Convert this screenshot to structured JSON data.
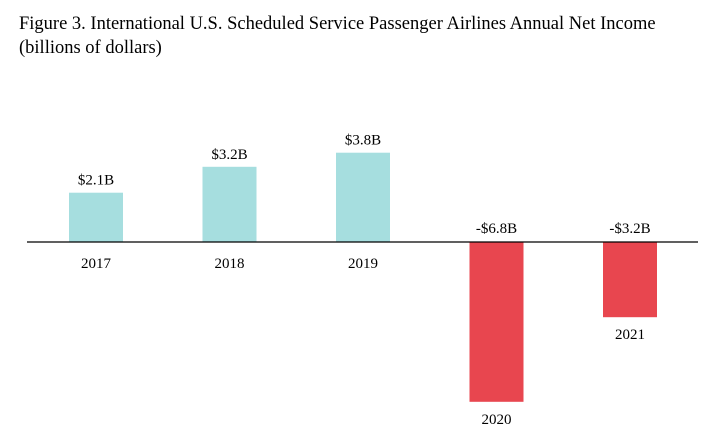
{
  "chart_data": {
    "type": "bar",
    "title": "Figure 3. International U.S. Scheduled Service Passenger Airlines Annual Net Income",
    "subtitle": "(billions of dollars)",
    "categories": [
      "2017",
      "2018",
      "2019",
      "2020",
      "2021"
    ],
    "values": [
      2.1,
      3.2,
      3.8,
      -6.8,
      -3.2
    ],
    "data_labels": [
      "$2.1B",
      "$3.2B",
      "$3.8B",
      "-$6.8B",
      "-$3.2B"
    ],
    "ylim": [
      -7.0,
      4.2
    ],
    "grid": false,
    "legend": "none",
    "colors": {
      "positive": "#a6dedf",
      "negative": "#e8464f",
      "axis": "#000000"
    }
  }
}
